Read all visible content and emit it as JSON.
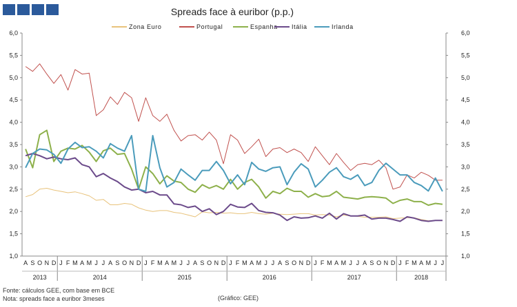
{
  "chart_data": {
    "type": "line",
    "title": "Spreads face à euribor (p.p.)",
    "ylim": [
      1.0,
      6.0
    ],
    "yticks": [
      "1,0",
      "1,5",
      "2,0",
      "2,5",
      "3,0",
      "3,5",
      "4,0",
      "4,5",
      "5,0",
      "5,5",
      "6,0"
    ],
    "ytick_values": [
      1.0,
      1.5,
      2.0,
      2.5,
      3.0,
      3.5,
      4.0,
      4.5,
      5.0,
      5.5,
      6.0
    ],
    "month_labels": [
      "A",
      "S",
      "O",
      "N",
      "D",
      "J",
      "F",
      "M",
      "A",
      "M",
      "J",
      "J",
      "A",
      "S",
      "O",
      "N",
      "D",
      "J",
      "F",
      "M",
      "A",
      "M",
      "J",
      "J",
      "A",
      "S",
      "O",
      "N",
      "D",
      "J",
      "F",
      "M",
      "A",
      "M",
      "J",
      "J",
      "A",
      "S",
      "O",
      "N",
      "D",
      "J",
      "F",
      "M",
      "A",
      "M",
      "J",
      "J",
      "A",
      "S",
      "O",
      "N",
      "D",
      "J",
      "F",
      "M",
      "A",
      "M",
      "J",
      "J"
    ],
    "years": [
      {
        "label": "2013",
        "start": 0,
        "count": 5
      },
      {
        "label": "2014",
        "start": 5,
        "count": 12
      },
      {
        "label": "2015",
        "start": 17,
        "count": 12
      },
      {
        "label": "2016",
        "start": 29,
        "count": 12
      },
      {
        "label": "2017",
        "start": 41,
        "count": 12
      },
      {
        "label": "2018",
        "start": 53,
        "count": 7
      }
    ],
    "series": [
      {
        "name": "Zona Euro",
        "color": "#e8c27a",
        "values": [
          2.33,
          2.38,
          2.5,
          2.52,
          2.48,
          2.45,
          2.42,
          2.44,
          2.4,
          2.35,
          2.25,
          2.27,
          2.15,
          2.15,
          2.18,
          2.16,
          2.08,
          2.03,
          2.0,
          2.02,
          2.02,
          1.98,
          1.96,
          1.92,
          1.88,
          1.99,
          1.97,
          1.98,
          1.96,
          1.97,
          1.95,
          1.95,
          1.98,
          1.95,
          1.94,
          1.96,
          1.94,
          1.93,
          1.94,
          1.95,
          1.95,
          1.92,
          1.93,
          1.92,
          1.88,
          1.92,
          1.9,
          1.89,
          1.87,
          1.87,
          1.87,
          1.88,
          1.84,
          1.85,
          1.86,
          1.86,
          1.82,
          1.79,
          1.8,
          1.8
        ]
      },
      {
        "name": "Portugal",
        "color": "#c0504d",
        "values": [
          5.25,
          5.14,
          5.31,
          5.08,
          4.87,
          5.07,
          4.72,
          5.18,
          5.08,
          5.1,
          4.15,
          4.28,
          4.57,
          4.4,
          4.67,
          4.55,
          4.02,
          4.55,
          4.15,
          4.02,
          4.18,
          3.82,
          3.58,
          3.7,
          3.72,
          3.6,
          3.78,
          3.6,
          3.07,
          3.72,
          3.6,
          3.3,
          3.45,
          3.62,
          3.23,
          3.4,
          3.43,
          3.32,
          3.4,
          3.32,
          3.12,
          3.45,
          3.25,
          3.05,
          3.3,
          3.1,
          2.92,
          3.05,
          3.08,
          3.05,
          3.15,
          2.98,
          2.5,
          2.55,
          2.82,
          2.75,
          2.88,
          2.81,
          2.7,
          2.7
        ]
      },
      {
        "name": "Espanha",
        "color": "#8db04a",
        "values": [
          3.4,
          2.98,
          3.72,
          3.82,
          3.12,
          3.35,
          3.42,
          3.4,
          3.48,
          3.33,
          3.12,
          3.36,
          3.42,
          3.28,
          3.3,
          2.95,
          2.5,
          3.0,
          2.85,
          2.62,
          2.8,
          2.68,
          2.65,
          2.5,
          2.43,
          2.6,
          2.52,
          2.58,
          2.5,
          2.72,
          2.5,
          2.65,
          2.72,
          2.55,
          2.3,
          2.45,
          2.4,
          2.52,
          2.45,
          2.45,
          2.32,
          2.4,
          2.33,
          2.35,
          2.45,
          2.32,
          2.3,
          2.28,
          2.32,
          2.33,
          2.32,
          2.3,
          2.18,
          2.25,
          2.28,
          2.22,
          2.22,
          2.14,
          2.18,
          2.16
        ]
      },
      {
        "name": "Itália",
        "color": "#6b4a8a",
        "values": [
          3.25,
          3.3,
          3.25,
          3.18,
          3.22,
          3.18,
          3.16,
          3.2,
          3.05,
          3.0,
          2.78,
          2.85,
          2.75,
          2.67,
          2.55,
          2.48,
          2.5,
          2.42,
          2.45,
          2.37,
          2.37,
          2.17,
          2.15,
          2.09,
          2.12,
          2.0,
          2.06,
          1.93,
          2.0,
          2.16,
          2.1,
          2.09,
          2.18,
          2.02,
          1.98,
          1.97,
          1.92,
          1.8,
          1.88,
          1.85,
          1.86,
          1.9,
          1.85,
          1.96,
          1.83,
          1.95,
          1.9,
          1.9,
          1.92,
          1.83,
          1.85,
          1.85,
          1.82,
          1.78,
          1.88,
          1.85,
          1.8,
          1.78,
          1.8,
          1.8
        ]
      },
      {
        "name": "Irlanda",
        "color": "#4a9bbb",
        "values": [
          2.98,
          3.3,
          3.4,
          3.38,
          3.28,
          3.08,
          3.4,
          3.55,
          3.43,
          3.45,
          3.35,
          3.2,
          3.52,
          3.42,
          3.35,
          3.7,
          2.5,
          2.45,
          3.7,
          2.98,
          2.55,
          2.65,
          2.95,
          2.82,
          2.7,
          2.92,
          2.92,
          3.12,
          2.92,
          2.62,
          2.82,
          2.6,
          3.1,
          2.95,
          2.9,
          2.98,
          3.0,
          2.6,
          2.88,
          3.07,
          2.95,
          2.55,
          2.7,
          2.88,
          2.98,
          2.78,
          2.72,
          2.82,
          2.58,
          2.65,
          2.92,
          3.08,
          2.95,
          2.82,
          2.82,
          2.65,
          2.58,
          2.46,
          2.75,
          2.45
        ]
      }
    ]
  },
  "notes": {
    "source": "Fonte: cálculos GEE, com base em BCE",
    "note": "Nota: spreads face a euribor 3meses",
    "credit": "(Gráfico: GEE)"
  }
}
